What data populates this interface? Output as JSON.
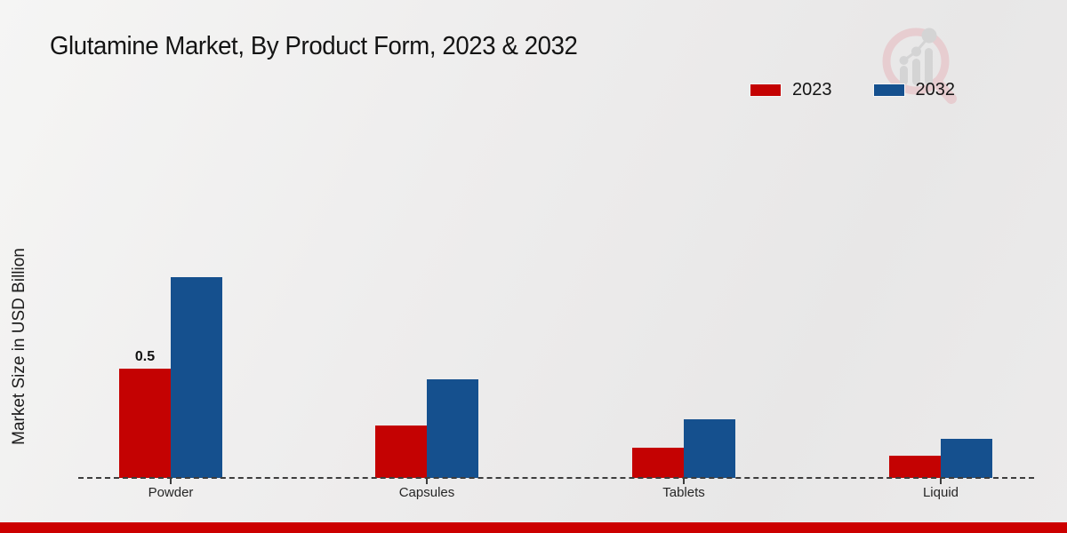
{
  "title": "Glutamine Market, By Product Form, 2023 & 2032",
  "y_axis_label": "Market Size in USD Billion",
  "legend": {
    "position": "top-right",
    "items": [
      {
        "label": "2023",
        "color": "#c40202"
      },
      {
        "label": "2032",
        "color": "#15508e"
      }
    ]
  },
  "footer": {
    "color": "#cc0000"
  },
  "colors": {
    "series_2023": "#c40202",
    "series_2032": "#15508e",
    "baseline": "#3d3d3d",
    "background": "#ebebeb"
  },
  "chart_data": {
    "type": "bar",
    "title": "Glutamine Market, By Product Form, 2023 & 2032",
    "categories": [
      "Powder",
      "Capsules",
      "Tablets",
      "Liquid"
    ],
    "series": [
      {
        "name": "2023",
        "color": "#c40202",
        "values": [
          0.5,
          0.24,
          0.14,
          0.1
        ]
      },
      {
        "name": "2032",
        "color": "#15508e",
        "values": [
          0.92,
          0.45,
          0.27,
          0.18
        ]
      }
    ],
    "bar_labels": [
      {
        "series": "2023",
        "category": "Powder",
        "text": "0.5"
      }
    ],
    "xlabel": "",
    "ylabel": "Market Size in USD Billion",
    "ylim": [
      0,
      1
    ],
    "grid": false,
    "axis_style": "dashed-baseline-only",
    "legend_position": "top-right"
  }
}
